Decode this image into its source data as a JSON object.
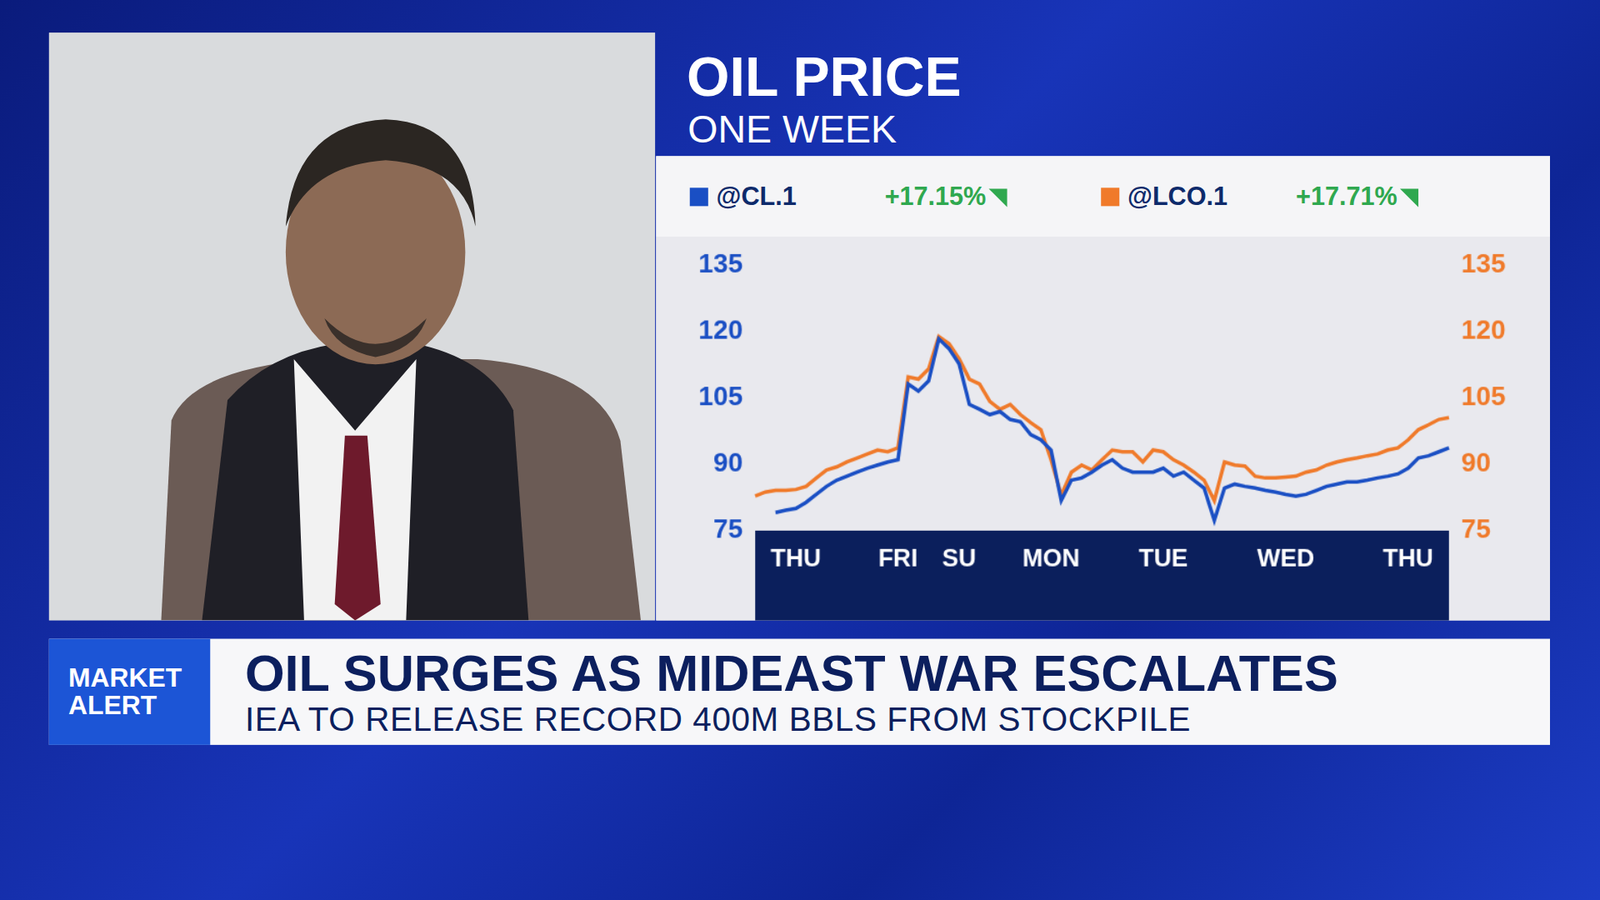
{
  "screen": {
    "banner": {
      "tag": "MARKET ALERT",
      "headline": "OIL SURGES AS MIDEAST WAR ESCALATES",
      "subheadline": "IEA TO RELEASE RECORD 400M BBLS FROM STOCKPILE"
    }
  },
  "chart_data": {
    "type": "line",
    "title": "OIL PRICE",
    "subtitle": "ONE WEEK",
    "categories": [
      null,
      null,
      null,
      null,
      "THU",
      null,
      null,
      null,
      null,
      null,
      null,
      null,
      null,
      null,
      "FRI",
      null,
      null,
      null,
      null,
      null,
      "SU",
      null,
      null,
      null,
      null,
      null,
      null,
      null,
      null,
      "MON",
      null,
      null,
      null,
      null,
      null,
      null,
      null,
      null,
      null,
      null,
      "TUE",
      null,
      null,
      null,
      null,
      null,
      null,
      null,
      null,
      null,
      null,
      null,
      "WED",
      null,
      null,
      null,
      null,
      null,
      null,
      null,
      null,
      null,
      null,
      null,
      "THU",
      null,
      null,
      null,
      null
    ],
    "series": [
      {
        "name": "@CL.1",
        "color": "#1a4fc4",
        "change": {
          "value": 17.15,
          "label": "+17.15%"
        },
        "values": [
          null,
          null,
          79.1,
          79.6,
          80.0,
          81.4,
          83.2,
          85.0,
          86.4,
          87.3,
          88.2,
          89.1,
          89.8,
          90.5,
          91.0,
          108.1,
          106.5,
          108.8,
          118.3,
          116.1,
          112.6,
          103.5,
          102.4,
          101.2,
          101.9,
          100.1,
          99.6,
          96.7,
          95.5,
          93.2,
          81.8,
          86.4,
          86.9,
          88.2,
          89.8,
          91.0,
          89.1,
          88.2,
          88.2,
          88.2,
          89.1,
          87.3,
          88.2,
          86.4,
          84.6,
          77.3,
          84.6,
          85.5,
          85.0,
          84.6,
          84.1,
          83.7,
          83.2,
          82.8,
          83.2,
          84.1,
          85.0,
          85.5,
          86.0,
          86.0,
          86.4,
          86.9,
          87.3,
          87.8,
          89.1,
          91.4,
          91.9,
          92.8,
          93.7
        ]
      },
      {
        "name": "@LCO.1",
        "color": "#f07a2a",
        "axis": "y2",
        "change": {
          "value": 17.71,
          "label": "+17.71%"
        },
        "values": [
          82.8,
          83.7,
          84.1,
          84.1,
          84.3,
          85.0,
          86.9,
          88.7,
          89.4,
          90.5,
          91.4,
          92.3,
          93.2,
          92.8,
          93.7,
          109.7,
          109.2,
          111.5,
          118.8,
          117.2,
          113.8,
          109.2,
          108.1,
          104.2,
          102.4,
          103.5,
          101.2,
          99.4,
          97.8,
          91.0,
          83.0,
          88.2,
          89.8,
          88.7,
          91.0,
          93.2,
          92.8,
          92.8,
          90.5,
          93.2,
          92.8,
          91.0,
          89.8,
          88.2,
          86.4,
          81.8,
          90.5,
          89.8,
          89.6,
          87.3,
          86.9,
          86.9,
          87.1,
          87.3,
          88.2,
          88.7,
          89.8,
          90.5,
          91.0,
          91.4,
          91.9,
          92.3,
          93.2,
          93.7,
          95.5,
          97.8,
          98.9,
          100.1,
          100.5
        ]
      }
    ],
    "ylim": [
      75,
      135
    ],
    "yticks": [
      75,
      90,
      105,
      120,
      135
    ],
    "y2lim": [
      75,
      135
    ],
    "y2ticks": [
      75,
      90,
      105,
      120,
      135
    ],
    "grid": false,
    "legend": "top"
  }
}
